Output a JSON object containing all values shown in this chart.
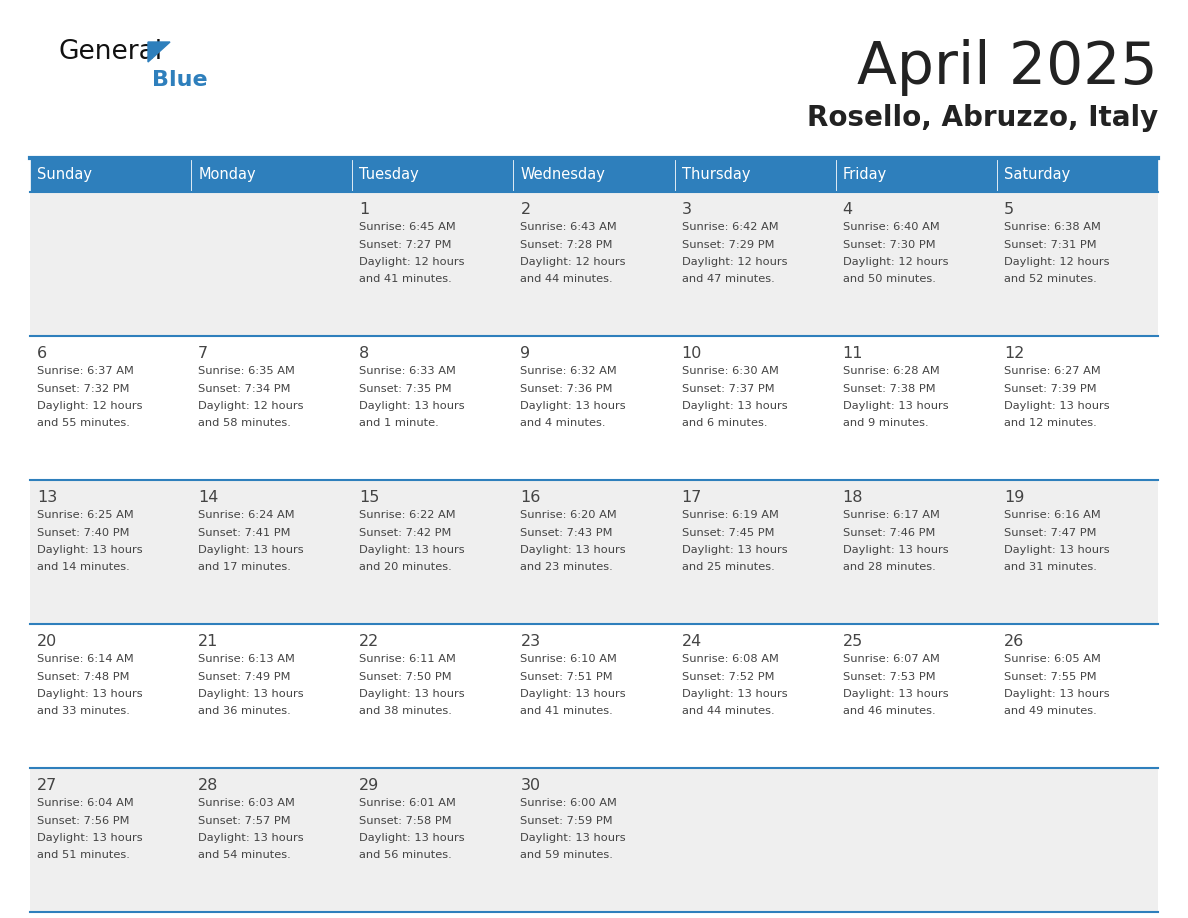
{
  "title": "April 2025",
  "subtitle": "Rosello, Abruzzo, Italy",
  "days_of_week": [
    "Sunday",
    "Monday",
    "Tuesday",
    "Wednesday",
    "Thursday",
    "Friday",
    "Saturday"
  ],
  "header_bg": "#2E7FBC",
  "header_text": "#FFFFFF",
  "row_bg_light": "#EFEFEF",
  "row_bg_white": "#FFFFFF",
  "border_color": "#2E7FBC",
  "text_color": "#444444",
  "title_color": "#222222",
  "logo_text_color": "#111111",
  "logo_blue_color": "#2E7FBC",
  "calendar_data": [
    [
      {
        "day": "",
        "lines": []
      },
      {
        "day": "",
        "lines": []
      },
      {
        "day": "1",
        "lines": [
          "Sunrise: 6:45 AM",
          "Sunset: 7:27 PM",
          "Daylight: 12 hours",
          "and 41 minutes."
        ]
      },
      {
        "day": "2",
        "lines": [
          "Sunrise: 6:43 AM",
          "Sunset: 7:28 PM",
          "Daylight: 12 hours",
          "and 44 minutes."
        ]
      },
      {
        "day": "3",
        "lines": [
          "Sunrise: 6:42 AM",
          "Sunset: 7:29 PM",
          "Daylight: 12 hours",
          "and 47 minutes."
        ]
      },
      {
        "day": "4",
        "lines": [
          "Sunrise: 6:40 AM",
          "Sunset: 7:30 PM",
          "Daylight: 12 hours",
          "and 50 minutes."
        ]
      },
      {
        "day": "5",
        "lines": [
          "Sunrise: 6:38 AM",
          "Sunset: 7:31 PM",
          "Daylight: 12 hours",
          "and 52 minutes."
        ]
      }
    ],
    [
      {
        "day": "6",
        "lines": [
          "Sunrise: 6:37 AM",
          "Sunset: 7:32 PM",
          "Daylight: 12 hours",
          "and 55 minutes."
        ]
      },
      {
        "day": "7",
        "lines": [
          "Sunrise: 6:35 AM",
          "Sunset: 7:34 PM",
          "Daylight: 12 hours",
          "and 58 minutes."
        ]
      },
      {
        "day": "8",
        "lines": [
          "Sunrise: 6:33 AM",
          "Sunset: 7:35 PM",
          "Daylight: 13 hours",
          "and 1 minute."
        ]
      },
      {
        "day": "9",
        "lines": [
          "Sunrise: 6:32 AM",
          "Sunset: 7:36 PM",
          "Daylight: 13 hours",
          "and 4 minutes."
        ]
      },
      {
        "day": "10",
        "lines": [
          "Sunrise: 6:30 AM",
          "Sunset: 7:37 PM",
          "Daylight: 13 hours",
          "and 6 minutes."
        ]
      },
      {
        "day": "11",
        "lines": [
          "Sunrise: 6:28 AM",
          "Sunset: 7:38 PM",
          "Daylight: 13 hours",
          "and 9 minutes."
        ]
      },
      {
        "day": "12",
        "lines": [
          "Sunrise: 6:27 AM",
          "Sunset: 7:39 PM",
          "Daylight: 13 hours",
          "and 12 minutes."
        ]
      }
    ],
    [
      {
        "day": "13",
        "lines": [
          "Sunrise: 6:25 AM",
          "Sunset: 7:40 PM",
          "Daylight: 13 hours",
          "and 14 minutes."
        ]
      },
      {
        "day": "14",
        "lines": [
          "Sunrise: 6:24 AM",
          "Sunset: 7:41 PM",
          "Daylight: 13 hours",
          "and 17 minutes."
        ]
      },
      {
        "day": "15",
        "lines": [
          "Sunrise: 6:22 AM",
          "Sunset: 7:42 PM",
          "Daylight: 13 hours",
          "and 20 minutes."
        ]
      },
      {
        "day": "16",
        "lines": [
          "Sunrise: 6:20 AM",
          "Sunset: 7:43 PM",
          "Daylight: 13 hours",
          "and 23 minutes."
        ]
      },
      {
        "day": "17",
        "lines": [
          "Sunrise: 6:19 AM",
          "Sunset: 7:45 PM",
          "Daylight: 13 hours",
          "and 25 minutes."
        ]
      },
      {
        "day": "18",
        "lines": [
          "Sunrise: 6:17 AM",
          "Sunset: 7:46 PM",
          "Daylight: 13 hours",
          "and 28 minutes."
        ]
      },
      {
        "day": "19",
        "lines": [
          "Sunrise: 6:16 AM",
          "Sunset: 7:47 PM",
          "Daylight: 13 hours",
          "and 31 minutes."
        ]
      }
    ],
    [
      {
        "day": "20",
        "lines": [
          "Sunrise: 6:14 AM",
          "Sunset: 7:48 PM",
          "Daylight: 13 hours",
          "and 33 minutes."
        ]
      },
      {
        "day": "21",
        "lines": [
          "Sunrise: 6:13 AM",
          "Sunset: 7:49 PM",
          "Daylight: 13 hours",
          "and 36 minutes."
        ]
      },
      {
        "day": "22",
        "lines": [
          "Sunrise: 6:11 AM",
          "Sunset: 7:50 PM",
          "Daylight: 13 hours",
          "and 38 minutes."
        ]
      },
      {
        "day": "23",
        "lines": [
          "Sunrise: 6:10 AM",
          "Sunset: 7:51 PM",
          "Daylight: 13 hours",
          "and 41 minutes."
        ]
      },
      {
        "day": "24",
        "lines": [
          "Sunrise: 6:08 AM",
          "Sunset: 7:52 PM",
          "Daylight: 13 hours",
          "and 44 minutes."
        ]
      },
      {
        "day": "25",
        "lines": [
          "Sunrise: 6:07 AM",
          "Sunset: 7:53 PM",
          "Daylight: 13 hours",
          "and 46 minutes."
        ]
      },
      {
        "day": "26",
        "lines": [
          "Sunrise: 6:05 AM",
          "Sunset: 7:55 PM",
          "Daylight: 13 hours",
          "and 49 minutes."
        ]
      }
    ],
    [
      {
        "day": "27",
        "lines": [
          "Sunrise: 6:04 AM",
          "Sunset: 7:56 PM",
          "Daylight: 13 hours",
          "and 51 minutes."
        ]
      },
      {
        "day": "28",
        "lines": [
          "Sunrise: 6:03 AM",
          "Sunset: 7:57 PM",
          "Daylight: 13 hours",
          "and 54 minutes."
        ]
      },
      {
        "day": "29",
        "lines": [
          "Sunrise: 6:01 AM",
          "Sunset: 7:58 PM",
          "Daylight: 13 hours",
          "and 56 minutes."
        ]
      },
      {
        "day": "30",
        "lines": [
          "Sunrise: 6:00 AM",
          "Sunset: 7:59 PM",
          "Daylight: 13 hours",
          "and 59 minutes."
        ]
      },
      {
        "day": "",
        "lines": []
      },
      {
        "day": "",
        "lines": []
      },
      {
        "day": "",
        "lines": []
      }
    ]
  ]
}
